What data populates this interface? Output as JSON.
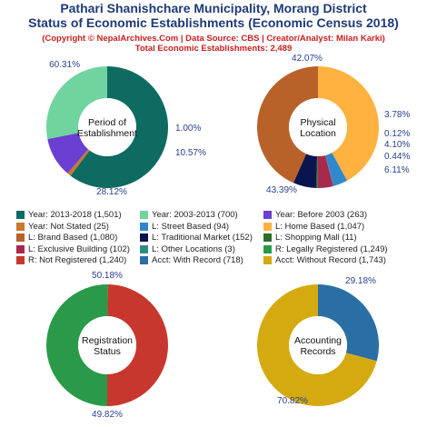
{
  "header": {
    "title_line1": "Pathari Shanishchare Municipality, Morang District",
    "title_line2": "Status of Economic Establishments (Economic Census 2018)",
    "subtitle_line1": "(Copyright © NepalArchives.Com | Data Source: CBS | Creator/Analyst: Milan Karki)",
    "subtitle_line2": "Total Economic Establishments: 2,489"
  },
  "chart_data": [
    {
      "type": "pie",
      "title": "Period of Establishment",
      "title_lines": [
        "Period of",
        "Establishment"
      ],
      "slices": [
        {
          "label": "Year: 2013-2018",
          "value": 1501,
          "pct_label": "60.31%",
          "color": "#0e6b62"
        },
        {
          "label": "Year: Not Stated",
          "value": 25,
          "pct_label": "1.00%",
          "color": "#c8782f"
        },
        {
          "label": "Year: Before 2003",
          "value": 263,
          "pct_label": "10.57%",
          "color": "#6a3fd1"
        },
        {
          "label": "Year: 2003-2013",
          "value": 700,
          "pct_label": "28.12%",
          "color": "#6fd49f"
        }
      ]
    },
    {
      "type": "pie",
      "title": "Physical Location",
      "title_lines": [
        "Physical",
        "Location"
      ],
      "slices": [
        {
          "label": "L: Home Based",
          "value": 1047,
          "pct_label": "42.07%",
          "color": "#ffb23f"
        },
        {
          "label": "L: Street Based",
          "value": 94,
          "pct_label": "3.78%",
          "color": "#2f88cc"
        },
        {
          "label": "L: Other Locations",
          "value": 3,
          "pct_label": "0.12%",
          "color": "#2f8a8a"
        },
        {
          "label": "L: Exclusive Building",
          "value": 102,
          "pct_label": "4.10%",
          "color": "#a8294e"
        },
        {
          "label": "L: Shopping Mall",
          "value": 11,
          "pct_label": "0.44%",
          "color": "#2e6d2e"
        },
        {
          "label": "L: Traditional Market",
          "value": 152,
          "pct_label": "6.11%",
          "color": "#0a1550"
        },
        {
          "label": "L: Brand Based",
          "value": 1080,
          "pct_label": "43.39%",
          "color": "#b8622a"
        }
      ]
    },
    {
      "type": "pie",
      "title": "Registration Status",
      "title_lines": [
        "Registration",
        "Status"
      ],
      "slices": [
        {
          "label": "R: Legally Registered",
          "value": 1249,
          "pct_label": "50.18%",
          "color": "#2a9a4a"
        },
        {
          "label": "R: Not Registered",
          "value": 1240,
          "pct_label": "49.82%",
          "color": "#c8372d"
        }
      ]
    },
    {
      "type": "pie",
      "title": "Accounting Records",
      "title_lines": [
        "Accounting",
        "Records"
      ],
      "slices": [
        {
          "label": "Acct: With Record",
          "value": 718,
          "pct_label": "29.18%",
          "color": "#2a6fa3"
        },
        {
          "label": "Acct: Without Record",
          "value": 1743,
          "pct_label": "70.82%",
          "color": "#d4aa10"
        }
      ]
    }
  ],
  "legend": [
    {
      "text": "Year: 2013-2018 (1,501)",
      "color": "#0e6b62"
    },
    {
      "text": "Year: 2003-2013 (700)",
      "color": "#6fd49f"
    },
    {
      "text": "Year: Before 2003 (263)",
      "color": "#6a3fd1"
    },
    {
      "text": "Year: Not Stated (25)",
      "color": "#c8782f"
    },
    {
      "text": "L: Street Based (94)",
      "color": "#2f88cc"
    },
    {
      "text": "L: Home Based (1,047)",
      "color": "#ffb23f"
    },
    {
      "text": "L: Brand Based (1,080)",
      "color": "#b8622a"
    },
    {
      "text": "L: Traditional Market (152)",
      "color": "#0a1550"
    },
    {
      "text": "L: Shopping Mall (11)",
      "color": "#2e6d2e"
    },
    {
      "text": "L: Exclusive Building (102)",
      "color": "#a8294e"
    },
    {
      "text": "L: Other Locations (3)",
      "color": "#2f8a8a"
    },
    {
      "text": "R: Legally Registered (1,249)",
      "color": "#2a9a4a"
    },
    {
      "text": "R: Not Registered (1,240)",
      "color": "#c8372d"
    },
    {
      "text": "Acct: With Record (718)",
      "color": "#2a6fa3"
    },
    {
      "text": "Acct: Without Record (1,743)",
      "color": "#d4aa10"
    }
  ]
}
